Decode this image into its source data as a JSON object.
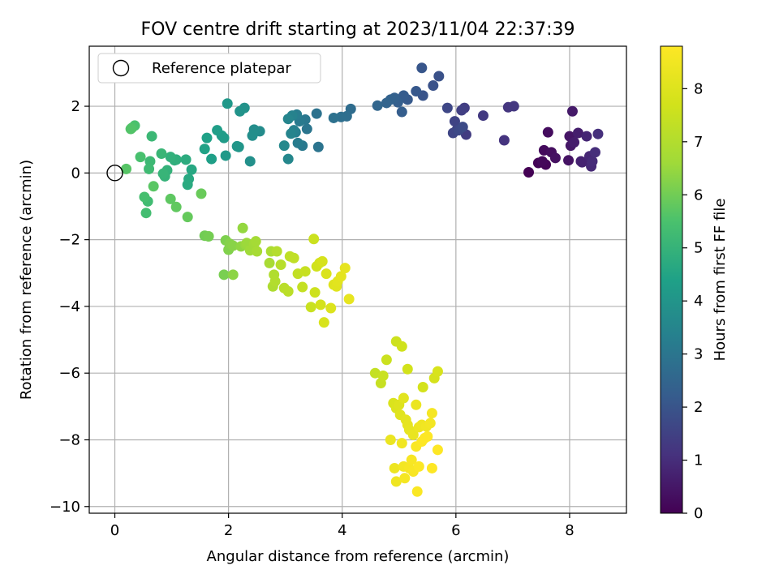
{
  "chart_data": {
    "type": "scatter",
    "title": "FOV centre drift starting at 2023/11/04 22:37:39",
    "xlabel": "Angular distance from reference (arcmin)",
    "ylabel": "Rotation from reference (arcmin)",
    "xlim": [
      -0.45,
      9.0
    ],
    "ylim": [
      -10.2,
      3.8
    ],
    "xticks": [
      0,
      2,
      4,
      6,
      8
    ],
    "xtick_labels": [
      "0",
      "2",
      "4",
      "6",
      "8"
    ],
    "yticks": [
      -10,
      -8,
      -6,
      -4,
      -2,
      0,
      2
    ],
    "ytick_labels": [
      "−10",
      "−8",
      "−6",
      "−4",
      "−2",
      "0",
      "2"
    ],
    "grid": true,
    "legend": {
      "position": "upper-left",
      "entries": [
        {
          "label": "Reference platepar",
          "marker": "open-circle"
        }
      ]
    },
    "reference_point": {
      "x": 0,
      "y": 0
    },
    "colorbar": {
      "label": "Hours from first FF file",
      "colormap": "viridis",
      "range": [
        0,
        8.8
      ],
      "ticks": [
        0,
        1,
        2,
        3,
        4,
        5,
        6,
        7,
        8
      ],
      "tick_labels": [
        "0",
        "1",
        "2",
        "3",
        "4",
        "5",
        "6",
        "7",
        "8"
      ]
    },
    "points": [
      [
        7.28,
        0.02,
        0.0
      ],
      [
        7.45,
        0.3,
        0.05
      ],
      [
        7.58,
        0.25,
        0.1
      ],
      [
        7.52,
        0.35,
        0.15
      ],
      [
        7.55,
        0.68,
        0.2
      ],
      [
        7.62,
        1.22,
        0.25
      ],
      [
        7.68,
        0.62,
        0.3
      ],
      [
        7.75,
        0.45,
        0.35
      ],
      [
        7.98,
        0.38,
        0.4
      ],
      [
        8.0,
        1.1,
        0.45
      ],
      [
        8.02,
        0.82,
        0.5
      ],
      [
        8.05,
        1.85,
        0.55
      ],
      [
        8.08,
        0.92,
        0.6
      ],
      [
        8.15,
        1.2,
        0.65
      ],
      [
        8.2,
        0.35,
        0.7
      ],
      [
        8.22,
        0.32,
        0.75
      ],
      [
        8.3,
        1.1,
        0.8
      ],
      [
        8.35,
        0.5,
        0.85
      ],
      [
        8.38,
        0.2,
        0.9
      ],
      [
        8.4,
        0.35,
        0.95
      ],
      [
        8.45,
        0.62,
        1.0
      ],
      [
        8.5,
        1.17,
        1.05
      ],
      [
        6.85,
        0.98,
        1.15
      ],
      [
        6.92,
        1.97,
        1.2
      ],
      [
        7.02,
        2.0,
        1.25
      ],
      [
        6.48,
        1.72,
        1.3
      ],
      [
        6.18,
        1.15,
        1.35
      ],
      [
        6.15,
        1.95,
        1.4
      ],
      [
        6.1,
        1.88,
        1.45
      ],
      [
        6.02,
        1.3,
        1.5
      ],
      [
        5.98,
        1.55,
        1.55
      ],
      [
        5.95,
        1.2,
        1.6
      ],
      [
        5.85,
        1.95,
        1.65
      ],
      [
        6.05,
        1.28,
        1.7
      ],
      [
        6.12,
        1.38,
        1.75
      ],
      [
        5.7,
        2.9,
        1.9
      ],
      [
        5.6,
        2.62,
        1.95
      ],
      [
        5.42,
        2.32,
        2.0
      ],
      [
        5.4,
        3.15,
        2.05
      ],
      [
        5.3,
        2.45,
        2.1
      ],
      [
        5.15,
        2.2,
        2.15
      ],
      [
        5.08,
        2.32,
        2.2
      ],
      [
        5.05,
        1.83,
        2.25
      ],
      [
        4.98,
        2.12,
        2.3
      ],
      [
        4.92,
        2.25,
        2.35
      ],
      [
        4.85,
        2.2,
        2.4
      ],
      [
        4.78,
        2.1,
        2.45
      ],
      [
        4.62,
        2.02,
        2.5
      ],
      [
        4.15,
        1.92,
        2.7
      ],
      [
        4.08,
        1.7,
        2.75
      ],
      [
        3.98,
        1.68,
        2.8
      ],
      [
        3.85,
        1.65,
        2.85
      ],
      [
        3.55,
        1.78,
        2.9
      ],
      [
        3.58,
        0.78,
        2.95
      ],
      [
        3.38,
        1.32,
        3.0
      ],
      [
        3.35,
        1.6,
        3.05
      ],
      [
        3.3,
        0.82,
        3.1
      ],
      [
        3.25,
        1.55,
        3.15
      ],
      [
        3.22,
        0.9,
        3.2
      ],
      [
        3.2,
        1.75,
        3.25
      ],
      [
        3.18,
        1.22,
        3.3
      ],
      [
        3.15,
        1.28,
        3.35
      ],
      [
        3.12,
        1.72,
        3.4
      ],
      [
        3.1,
        1.18,
        3.45
      ],
      [
        3.05,
        1.62,
        3.5
      ],
      [
        3.05,
        0.42,
        3.55
      ],
      [
        2.98,
        0.82,
        3.6
      ],
      [
        2.55,
        1.25,
        3.7
      ],
      [
        2.45,
        1.3,
        3.75
      ],
      [
        2.42,
        1.12,
        3.8
      ],
      [
        2.38,
        0.35,
        3.85
      ],
      [
        2.28,
        1.95,
        3.9
      ],
      [
        2.2,
        1.85,
        3.95
      ],
      [
        2.18,
        0.78,
        4.0
      ],
      [
        2.15,
        0.8,
        4.05
      ],
      [
        1.98,
        2.08,
        4.1
      ],
      [
        1.95,
        0.52,
        4.15
      ],
      [
        1.92,
        1.05,
        4.2
      ],
      [
        1.88,
        1.12,
        4.25
      ],
      [
        1.8,
        1.28,
        4.3
      ],
      [
        1.7,
        0.42,
        4.35
      ],
      [
        1.62,
        1.05,
        4.4
      ],
      [
        1.58,
        0.72,
        4.45
      ],
      [
        1.35,
        0.1,
        4.6
      ],
      [
        1.3,
        -0.18,
        4.65
      ],
      [
        1.28,
        -0.35,
        4.7
      ],
      [
        1.25,
        0.4,
        4.75
      ],
      [
        1.08,
        0.4,
        4.8
      ],
      [
        1.05,
        0.38,
        4.85
      ],
      [
        0.98,
        0.48,
        4.9
      ],
      [
        0.92,
        0.08,
        4.95
      ],
      [
        0.88,
        -0.1,
        5.0
      ],
      [
        0.85,
        -0.02,
        5.05
      ],
      [
        0.82,
        0.58,
        5.1
      ],
      [
        0.65,
        1.1,
        5.15
      ],
      [
        0.62,
        0.35,
        5.2
      ],
      [
        0.6,
        0.12,
        5.25
      ],
      [
        0.58,
        -0.85,
        5.3
      ],
      [
        0.55,
        -1.2,
        5.35
      ],
      [
        0.52,
        -0.72,
        5.4
      ],
      [
        0.45,
        0.48,
        5.45
      ],
      [
        0.35,
        1.42,
        5.5
      ],
      [
        0.3,
        1.35,
        5.55
      ],
      [
        0.28,
        1.32,
        5.6
      ],
      [
        0.2,
        0.12,
        5.65
      ],
      [
        0.68,
        -0.4,
        5.7
      ],
      [
        0.98,
        -0.78,
        5.75
      ],
      [
        1.08,
        -1.02,
        5.8
      ],
      [
        1.28,
        -1.32,
        5.85
      ],
      [
        1.52,
        -0.62,
        5.9
      ],
      [
        1.58,
        -1.88,
        6.0
      ],
      [
        1.65,
        -1.9,
        6.05
      ],
      [
        1.92,
        -3.05,
        6.1
      ],
      [
        1.95,
        -2.02,
        6.15
      ],
      [
        2.0,
        -2.3,
        6.2
      ],
      [
        2.02,
        -2.12,
        6.25
      ],
      [
        2.08,
        -2.18,
        6.3
      ],
      [
        2.08,
        -3.05,
        6.35
      ],
      [
        2.22,
        -2.2,
        6.4
      ],
      [
        2.25,
        -1.65,
        6.45
      ],
      [
        2.3,
        -2.15,
        6.5
      ],
      [
        2.32,
        -2.1,
        6.55
      ],
      [
        2.38,
        -2.32,
        6.6
      ],
      [
        2.45,
        -2.12,
        6.65
      ],
      [
        2.48,
        -2.05,
        6.7
      ],
      [
        2.5,
        -2.35,
        6.75
      ],
      [
        2.72,
        -2.7,
        6.8
      ],
      [
        2.75,
        -2.35,
        6.85
      ],
      [
        2.78,
        -3.4,
        6.9
      ],
      [
        2.8,
        -3.05,
        6.95
      ],
      [
        2.82,
        -3.25,
        7.0
      ],
      [
        2.85,
        -2.35,
        7.05
      ],
      [
        2.92,
        -2.75,
        7.1
      ],
      [
        2.98,
        -3.45,
        7.15
      ],
      [
        3.05,
        -3.55,
        7.2
      ],
      [
        3.08,
        -2.5,
        7.25
      ],
      [
        3.15,
        -2.55,
        7.3
      ],
      [
        3.22,
        -3.02,
        7.35
      ],
      [
        3.3,
        -3.42,
        7.4
      ],
      [
        3.35,
        -2.95,
        7.45
      ],
      [
        3.45,
        -4.02,
        7.5
      ],
      [
        3.5,
        -1.98,
        7.55
      ],
      [
        3.52,
        -3.58,
        7.6
      ],
      [
        3.55,
        -2.8,
        7.65
      ],
      [
        3.6,
        -2.7,
        7.7
      ],
      [
        3.62,
        -3.95,
        7.75
      ],
      [
        3.65,
        -2.65,
        7.8
      ],
      [
        3.68,
        -4.48,
        7.85
      ],
      [
        3.72,
        -3.02,
        7.9
      ],
      [
        3.8,
        -4.05,
        7.95
      ],
      [
        3.85,
        -3.35,
        8.0
      ],
      [
        3.9,
        -3.4,
        8.05
      ],
      [
        3.92,
        -3.25,
        8.1
      ],
      [
        3.98,
        -3.1,
        8.15
      ],
      [
        4.05,
        -2.85,
        8.2
      ],
      [
        4.12,
        -3.78,
        8.25
      ],
      [
        4.58,
        -6.0,
        7.4
      ],
      [
        4.68,
        -6.3,
        7.45
      ],
      [
        4.72,
        -6.08,
        7.5
      ],
      [
        4.78,
        -5.6,
        7.55
      ],
      [
        4.95,
        -5.05,
        7.6
      ],
      [
        5.05,
        -5.2,
        7.65
      ],
      [
        5.15,
        -5.88,
        7.7
      ],
      [
        5.42,
        -6.42,
        7.75
      ],
      [
        5.62,
        -6.15,
        7.8
      ],
      [
        5.68,
        -5.95,
        7.85
      ],
      [
        4.9,
        -6.9,
        7.9
      ],
      [
        4.95,
        -7.05,
        7.95
      ],
      [
        5.0,
        -6.95,
        8.0
      ],
      [
        5.02,
        -7.25,
        8.05
      ],
      [
        5.08,
        -6.75,
        8.1
      ],
      [
        5.12,
        -7.4,
        8.15
      ],
      [
        5.15,
        -7.55,
        8.2
      ],
      [
        5.18,
        -7.7,
        8.25
      ],
      [
        5.25,
        -7.85,
        8.3
      ],
      [
        5.3,
        -6.95,
        8.35
      ],
      [
        5.35,
        -7.62,
        8.4
      ],
      [
        5.4,
        -7.55,
        8.45
      ],
      [
        5.48,
        -7.6,
        8.5
      ],
      [
        5.55,
        -7.5,
        8.55
      ],
      [
        5.58,
        -7.2,
        8.6
      ],
      [
        4.85,
        -8.0,
        8.35
      ],
      [
        4.92,
        -8.85,
        8.4
      ],
      [
        4.95,
        -9.25,
        8.45
      ],
      [
        5.05,
        -8.1,
        8.5
      ],
      [
        5.08,
        -8.8,
        8.55
      ],
      [
        5.1,
        -9.15,
        8.6
      ],
      [
        5.18,
        -8.85,
        8.62
      ],
      [
        5.22,
        -8.6,
        8.65
      ],
      [
        5.25,
        -8.95,
        8.68
      ],
      [
        5.3,
        -8.2,
        8.7
      ],
      [
        5.32,
        -9.55,
        8.72
      ],
      [
        5.35,
        -8.8,
        8.75
      ],
      [
        5.4,
        -8.05,
        8.78
      ],
      [
        5.45,
        -7.95,
        8.8
      ],
      [
        5.5,
        -7.9,
        8.8
      ],
      [
        5.58,
        -8.85,
        8.8
      ],
      [
        5.68,
        -8.3,
        8.8
      ]
    ]
  }
}
